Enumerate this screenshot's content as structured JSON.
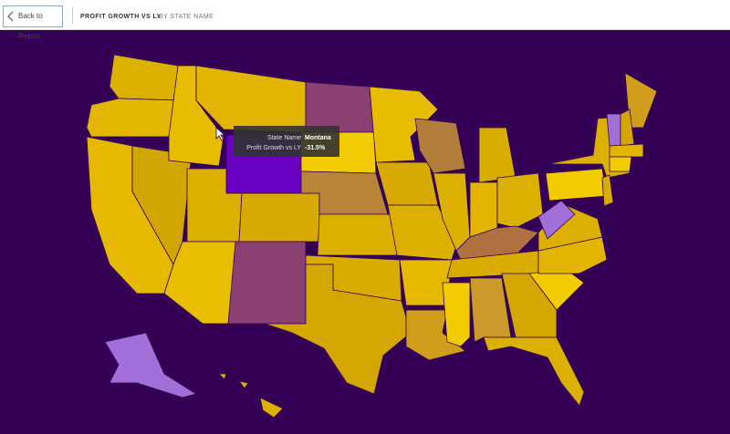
{
  "header": {
    "back": "Back to Report",
    "title": "PROFIT GROWTH VS LY",
    "subtitle": "BY STATE NAME"
  },
  "tooltip": {
    "rows": [
      {
        "label": "State Name",
        "value": "Montana"
      },
      {
        "label": "Profit Growth vs LY",
        "value": "-31.5%"
      }
    ]
  }
}
